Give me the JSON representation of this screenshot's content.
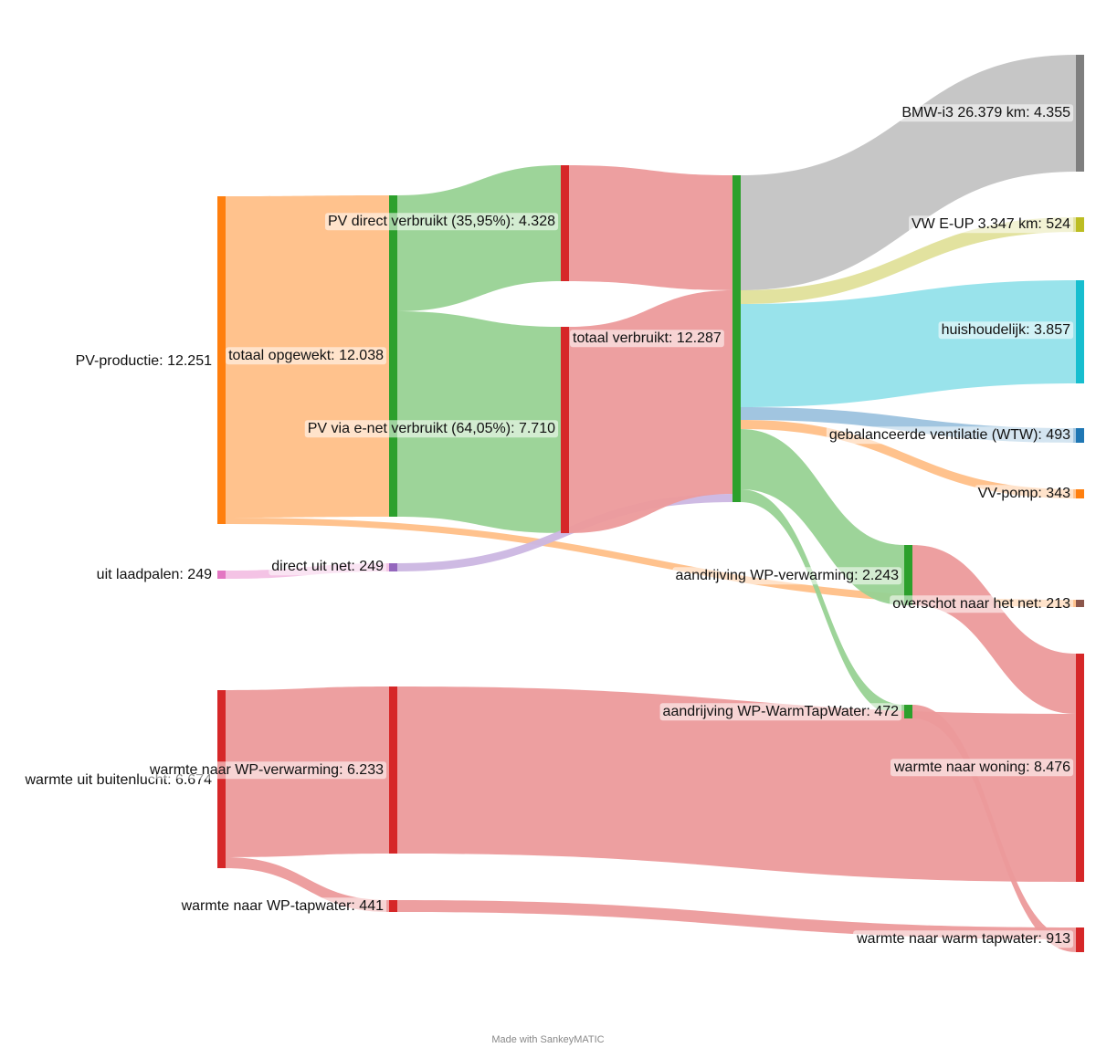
{
  "footer": "Made with SankeyMATIC",
  "colors": {
    "pv_orange": "#ff7f0e",
    "pv_orange_flow": "#ffbf87",
    "green": "#2ca02c",
    "green_flow": "#98d294",
    "red": "#d62728",
    "red_flow": "#ec9a9b",
    "gray": "#7f7f7f",
    "gray_flow": "#c3c3c3",
    "olive": "#bcbd22",
    "olive_flow": "#e0e09a",
    "cyan": "#17becf",
    "cyan_flow": "#93e2ea",
    "blue": "#1f77b4",
    "blue_flow": "#9cc2de",
    "purple": "#9467bd",
    "purple_flow": "#cbb6e1",
    "pink": "#e377c2",
    "pink_flow": "#f3c0e4",
    "brown": "#8c564b"
  },
  "nodes": [
    {
      "id": "pv",
      "name": "PV-productie",
      "value": "12.251",
      "color": "pv_orange",
      "label_side": "left"
    },
    {
      "id": "laad",
      "name": "uit laadpalen",
      "value": "249",
      "color": "pink",
      "label_side": "left"
    },
    {
      "id": "buiten",
      "name": "warmte uit buitenlucht",
      "value": "6.674",
      "color": "red",
      "label_side": "left"
    },
    {
      "id": "opgewekt",
      "name": "totaal opgewekt",
      "value": "12.038",
      "color": "green",
      "label_side": "left"
    },
    {
      "id": "netdirect",
      "name": "direct uit net",
      "value": "249",
      "color": "purple",
      "label_side": "left"
    },
    {
      "id": "wpverw",
      "name": "warmte naar WP-verwarming",
      "value": "6.233",
      "color": "red",
      "label_side": "left"
    },
    {
      "id": "wptap",
      "name": "warmte naar WP-tapwater",
      "value": "441",
      "color": "red",
      "label_side": "left"
    },
    {
      "id": "pvdirect",
      "name": "PV direct verbruikt (35,95%)",
      "value": "4.328",
      "color": "red",
      "label_side": "left"
    },
    {
      "id": "pvnet",
      "name": "PV via e-net verbruikt (64,05%)",
      "value": "7.710",
      "color": "red",
      "label_side": "left"
    },
    {
      "id": "totverbr",
      "name": "totaal verbruikt",
      "value": "12.287",
      "color": "green",
      "label_side": "right"
    },
    {
      "id": "bmw",
      "name": "BMW-i3 26.379 km",
      "value": "4.355",
      "color": "gray",
      "label_side": "left"
    },
    {
      "id": "vw",
      "name": "VW E-UP 3.347 km",
      "value": "524",
      "color": "olive",
      "label_side": "left"
    },
    {
      "id": "huis",
      "name": "huishoudelijk",
      "value": "3.857",
      "color": "cyan",
      "label_side": "left"
    },
    {
      "id": "wtw",
      "name": "gebalanceerde ventilatie (WTW)",
      "value": "493",
      "color": "blue",
      "label_side": "left"
    },
    {
      "id": "vvpomp",
      "name": "VV-pomp",
      "value": "343",
      "color": "pv_orange",
      "label_side": "left"
    },
    {
      "id": "aandrverw",
      "name": "aandrijving WP-verwarming",
      "value": "2.243",
      "color": "green",
      "label_side": "left"
    },
    {
      "id": "aandrtap",
      "name": "aandrijving WP-WarmTapWater",
      "value": "472",
      "color": "green",
      "label_side": "left"
    },
    {
      "id": "overschot",
      "name": "overschot naar het net",
      "value": "213",
      "color": "brown",
      "label_side": "left"
    },
    {
      "id": "woning",
      "name": "warmte naar woning",
      "value": "8.476",
      "color": "red",
      "label_side": "left"
    },
    {
      "id": "tapwater",
      "name": "warmte naar warm tapwater",
      "value": "913",
      "color": "red",
      "label_side": "left"
    }
  ],
  "flows": [
    {
      "source": "pv",
      "target": "opgewekt",
      "value": 12038,
      "color": "pv_orange_flow"
    },
    {
      "source": "pv",
      "target": "overschot",
      "value": 213,
      "color": "pv_orange_flow"
    },
    {
      "source": "laad",
      "target": "netdirect",
      "value": 249,
      "color": "pink_flow"
    },
    {
      "source": "buiten",
      "target": "wpverw",
      "value": 6233,
      "color": "red_flow"
    },
    {
      "source": "buiten",
      "target": "wptap",
      "value": 441,
      "color": "red_flow"
    },
    {
      "source": "opgewekt",
      "target": "pvdirect",
      "value": 4328,
      "color": "green_flow"
    },
    {
      "source": "opgewekt",
      "target": "pvnet",
      "value": 7710,
      "color": "green_flow"
    },
    {
      "source": "netdirect",
      "target": "totverbr",
      "value": 249,
      "color": "purple_flow"
    },
    {
      "source": "pvdirect",
      "target": "totverbr",
      "value": 4328,
      "color": "red_flow"
    },
    {
      "source": "pvnet",
      "target": "totverbr",
      "value": 7710,
      "color": "red_flow"
    },
    {
      "source": "totverbr",
      "target": "bmw",
      "value": 4355,
      "color": "gray_flow"
    },
    {
      "source": "totverbr",
      "target": "vw",
      "value": 524,
      "color": "olive_flow"
    },
    {
      "source": "totverbr",
      "target": "huis",
      "value": 3857,
      "color": "cyan_flow"
    },
    {
      "source": "totverbr",
      "target": "wtw",
      "value": 493,
      "color": "blue_flow"
    },
    {
      "source": "totverbr",
      "target": "vvpomp",
      "value": 343,
      "color": "pv_orange_flow"
    },
    {
      "source": "totverbr",
      "target": "aandrverw",
      "value": 2243,
      "color": "green_flow"
    },
    {
      "source": "totverbr",
      "target": "aandrtap",
      "value": 472,
      "color": "green_flow"
    },
    {
      "source": "wpverw",
      "target": "woning",
      "value": 6233,
      "color": "red_flow"
    },
    {
      "source": "aandrverw",
      "target": "woning",
      "value": 2243,
      "color": "red_flow"
    },
    {
      "source": "wptap",
      "target": "tapwater",
      "value": 441,
      "color": "red_flow"
    },
    {
      "source": "aandrtap",
      "target": "tapwater",
      "value": 472,
      "color": "red_flow"
    }
  ]
}
